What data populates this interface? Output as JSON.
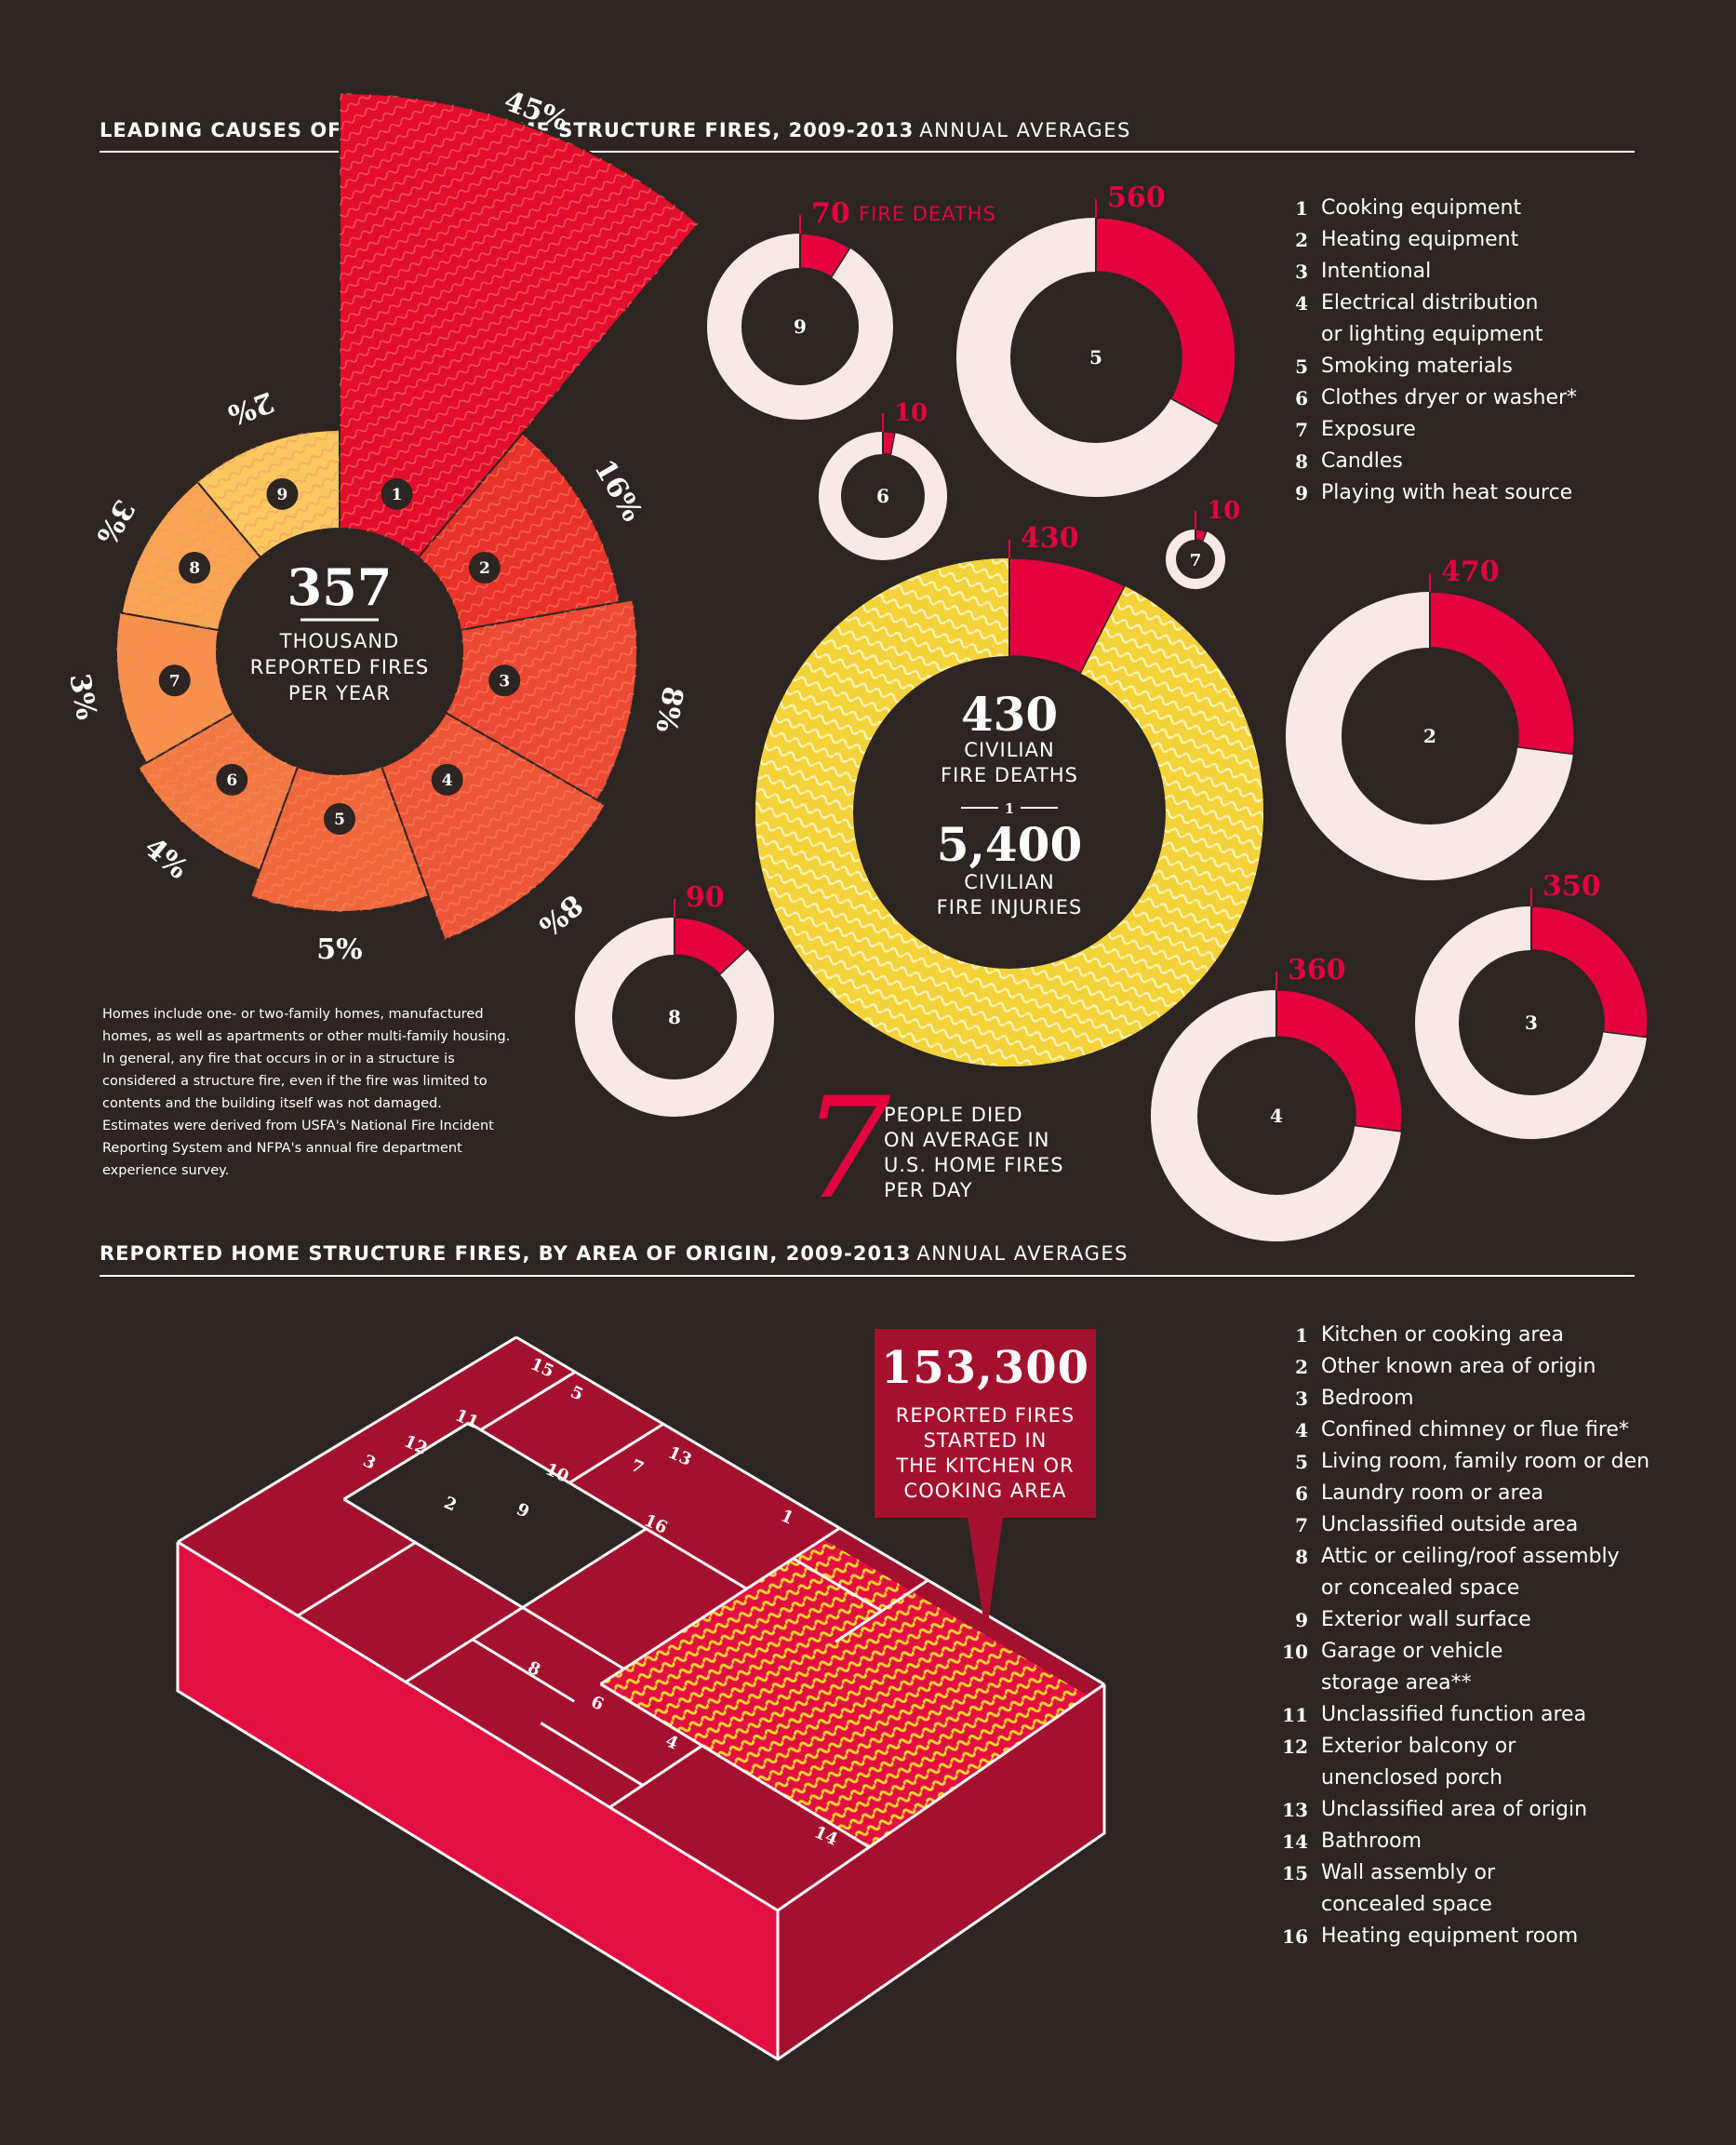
{
  "title": "LEADING CAUSES OF REPORTED HOME STRUCTURE FIRES, 2009-2013",
  "title_sub": "ANNUAL AVERAGES",
  "title2": "REPORTED HOME STRUCTURE FIRES, BY AREA OF ORIGIN, 2009-2013",
  "title2_sub": "ANNUAL AVERAGES",
  "colors": {
    "background": "#2d2521",
    "accent": "#e4003f",
    "deaths_ring": "#f9e9e6",
    "yellow": "#f5d93e"
  },
  "chart_data": [
    {
      "type": "pie",
      "title": "LEADING CAUSES OF REPORTED HOME STRUCTURE FIRES, 2009-2013",
      "center": {
        "value": "357",
        "label": "THOUSAND\nREPORTED FIRES\nPER YEAR"
      },
      "categories": [
        "1",
        "2",
        "3",
        "4",
        "5",
        "6",
        "7",
        "8",
        "9"
      ],
      "values": [
        45,
        16,
        8,
        8,
        5,
        4,
        3,
        3,
        2
      ],
      "value_labels": [
        "45%",
        "16%",
        "8%",
        "8%",
        "5%",
        "4%",
        "3%",
        "3%",
        "2%"
      ],
      "colors": [
        "#e30d2e",
        "#e8322a",
        "#ec4a35",
        "#ee5638",
        "#f0673c",
        "#f27a42",
        "#f7904a",
        "#f9a653",
        "#fbc95f"
      ]
    },
    {
      "type": "pie",
      "title": "FIRE DEATHS",
      "center": {
        "deaths_value": "430",
        "deaths_label": "CIVILIAN\nFIRE DEATHS",
        "cause_marker": "1",
        "injuries_value": "5,400",
        "injuries_label": "CIVILIAN\nFIRE INJURIES"
      },
      "categories": [
        "1",
        "2",
        "3",
        "4",
        "5",
        "6",
        "7",
        "8",
        "9"
      ],
      "deaths": [
        430,
        470,
        350,
        360,
        560,
        10,
        10,
        90,
        70
      ],
      "injuries_ring_value": 5400,
      "annotation": "70 FIRE DEATHS"
    },
    {
      "type": "bar",
      "title": "REPORTED HOME STRUCTURE FIRES, BY AREA OF ORIGIN, 2009-2013",
      "categories": [
        "1",
        "2",
        "3",
        "4",
        "5",
        "6",
        "7",
        "8",
        "9",
        "10",
        "11",
        "12",
        "13",
        "14",
        "15",
        "16"
      ],
      "highlight": {
        "category": "1",
        "value": "153,300",
        "label": "REPORTED FIRES\nSTARTED IN\nTHE KITCHEN OR\nCOOKING AREA"
      }
    }
  ],
  "causes": [
    {
      "num": "1",
      "label": "Cooking equipment"
    },
    {
      "num": "2",
      "label": "Heating equipment"
    },
    {
      "num": "3",
      "label": "Intentional"
    },
    {
      "num": "4",
      "label": "Electrical distribution\nor lighting equipment"
    },
    {
      "num": "5",
      "label": "Smoking materials"
    },
    {
      "num": "6",
      "label": "Clothes dryer or washer*"
    },
    {
      "num": "7",
      "label": "Exposure"
    },
    {
      "num": "8",
      "label": "Candles"
    },
    {
      "num": "9",
      "label": "Playing with heat source"
    }
  ],
  "areas": [
    {
      "num": "1",
      "label": "Kitchen or cooking area"
    },
    {
      "num": "2",
      "label": "Other known area of origin"
    },
    {
      "num": "3",
      "label": "Bedroom"
    },
    {
      "num": "4",
      "label": "Confined chimney or flue fire*"
    },
    {
      "num": "5",
      "label": "Living room, family room or den"
    },
    {
      "num": "6",
      "label": "Laundry room or area"
    },
    {
      "num": "7",
      "label": "Unclassified outside area"
    },
    {
      "num": "8",
      "label": "Attic or ceiling/roof assembly\nor concealed space"
    },
    {
      "num": "9",
      "label": "Exterior wall surface"
    },
    {
      "num": "10",
      "label": "Garage or vehicle\nstorage area**"
    },
    {
      "num": "11",
      "label": "Unclassified  function area"
    },
    {
      "num": "12",
      "label": "Exterior balcony or\nunenclosed porch"
    },
    {
      "num": "13",
      "label": "Unclassified area of origin"
    },
    {
      "num": "14",
      "label": "Bathroom"
    },
    {
      "num": "15",
      "label": "Wall assembly or\nconcealed space"
    },
    {
      "num": "16",
      "label": "Heating  equipment room"
    }
  ],
  "note": "Homes include one- or two-family homes, manufactured homes, as well as apartments or other multi-family housing. In general, any fire that occurs in or in a structure is considered a structure fire, even if the fire was limited to contents and the building itself was not damaged. Estimates were derived from USFA's National Fire Incident Reporting System and NFPA's annual fire department experience survey.",
  "stat7": {
    "value": "7",
    "label": "PEOPLE DIED\nON AVERAGE IN\nU.S. HOME FIRES\nPER DAY"
  }
}
